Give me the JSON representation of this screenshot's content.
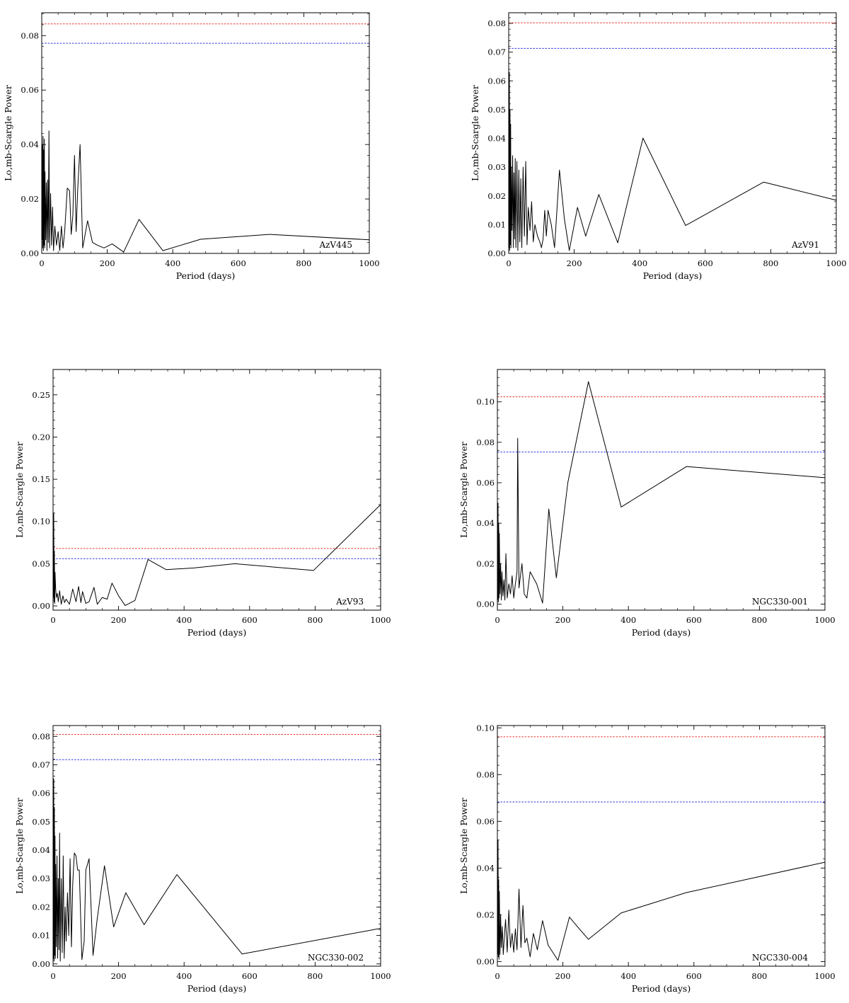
{
  "colors": {
    "curve": "#000000",
    "threshold_high": "#e8342e",
    "threshold_low": "#2d34e0",
    "axes": "#000000"
  },
  "chart_data": [
    {
      "type": "line",
      "label": "AzV445",
      "xlabel": "Period (days)",
      "ylabel": "Lo,mb-Scargle Power",
      "xlim": [
        0,
        1000
      ],
      "ylim": [
        0,
        0.0884
      ],
      "xticks": [
        0,
        200,
        400,
        600,
        800,
        1000
      ],
      "xtick_labels": [
        "0",
        "200",
        "400",
        "600",
        "800",
        "1000"
      ],
      "yticks": [
        0,
        0.02,
        0.04,
        0.06,
        0.08
      ],
      "ytick_labels": [
        "0.00",
        "0.02",
        "0.04",
        "0.06",
        "0.08"
      ],
      "thresholds": [
        0.0843,
        0.0772
      ],
      "x": [
        1,
        2,
        3,
        4,
        5,
        6,
        7,
        8,
        9,
        10,
        12,
        14,
        16,
        18,
        20,
        22,
        24,
        27,
        30,
        33,
        36,
        40,
        45,
        50,
        55,
        60,
        65,
        70,
        78,
        85,
        90,
        95,
        100,
        105,
        110,
        117,
        125,
        140,
        155,
        170,
        190,
        215,
        250,
        297,
        370,
        485,
        695,
        1000
      ],
      "values": [
        0.005,
        0.04,
        0.002,
        0.043,
        0.001,
        0.038,
        0.003,
        0.042,
        0.002,
        0.03,
        0.005,
        0.026,
        0.001,
        0.027,
        0.004,
        0.045,
        0.002,
        0.022,
        0.003,
        0.017,
        0.001,
        0.01,
        0.003,
        0.008,
        0.001,
        0.01,
        0.002,
        0.008,
        0.024,
        0.023,
        0.007,
        0.014,
        0.036,
        0.008,
        0.024,
        0.04,
        0.002,
        0.012,
        0.004,
        0.003,
        0.002,
        0.0035,
        0.0005,
        0.0125,
        0.001,
        0.0052,
        0.007,
        0.005
      ]
    },
    {
      "type": "line",
      "label": "AzV91",
      "xlabel": "Period (days)",
      "ylabel": "Lo,mb-Scargle Power",
      "xlim": [
        0,
        1000
      ],
      "ylim": [
        0,
        0.0837
      ],
      "xticks": [
        0,
        200,
        400,
        600,
        800,
        1000
      ],
      "xtick_labels": [
        "0",
        "200",
        "400",
        "600",
        "800",
        "1000"
      ],
      "yticks": [
        0,
        0.01,
        0.02,
        0.03,
        0.04,
        0.05,
        0.06,
        0.07,
        0.08
      ],
      "ytick_labels": [
        "0.00",
        "0.01",
        "0.02",
        "0.03",
        "0.04",
        "0.05",
        "0.06",
        "0.07",
        "0.08"
      ],
      "thresholds": [
        0.0802,
        0.0713
      ],
      "x": [
        1,
        2,
        3,
        4,
        5,
        6,
        7,
        8,
        10,
        12,
        14,
        16,
        18,
        20,
        22,
        25,
        28,
        31,
        34,
        37,
        40,
        44,
        48,
        52,
        56,
        60,
        65,
        70,
        75,
        80,
        88,
        95,
        100,
        105,
        110,
        115,
        120,
        130,
        140,
        155,
        170,
        185,
        210,
        235,
        275,
        333,
        410,
        540,
        778,
        1000
      ],
      "values": [
        0.002,
        0.063,
        0.001,
        0.05,
        0.003,
        0.045,
        0.002,
        0.03,
        0.008,
        0.034,
        0.002,
        0.028,
        0.005,
        0.033,
        0.002,
        0.032,
        0.001,
        0.029,
        0.004,
        0.026,
        0.002,
        0.03,
        0.006,
        0.032,
        0.003,
        0.016,
        0.008,
        0.018,
        0.004,
        0.01,
        0.006,
        0.004,
        0.002,
        0.005,
        0.015,
        0.006,
        0.015,
        0.01,
        0.002,
        0.029,
        0.012,
        0.001,
        0.016,
        0.006,
        0.0205,
        0.0037,
        0.0401,
        0.0097,
        0.0248,
        0.0185
      ]
    },
    {
      "type": "line",
      "label": "AzV93",
      "xlabel": "Period (days)",
      "ylabel": "Lo,mb-Scargle Power",
      "xlim": [
        0,
        1000
      ],
      "ylim": [
        -0.005,
        0.28
      ],
      "xticks": [
        0,
        200,
        400,
        600,
        800,
        1000
      ],
      "xtick_labels": [
        "0",
        "200",
        "400",
        "600",
        "800",
        "1000"
      ],
      "yticks": [
        0,
        0.05,
        0.1,
        0.15,
        0.2,
        0.25
      ],
      "ytick_labels": [
        "0.00",
        "0.05",
        "0.10",
        "0.15",
        "0.20",
        "0.25"
      ],
      "thresholds": [
        0.068,
        0.056
      ],
      "x": [
        1,
        2,
        3,
        4,
        5,
        6,
        8,
        10,
        13,
        16,
        20,
        25,
        30,
        35,
        40,
        50,
        60,
        70,
        78,
        85,
        90,
        100,
        110,
        125,
        135,
        150,
        165,
        180,
        200,
        220,
        250,
        290,
        345,
        430,
        555,
        795,
        1000
      ],
      "values": [
        0.01,
        0.11,
        0.005,
        0.065,
        0.003,
        0.04,
        0.02,
        0.01,
        0.015,
        0.005,
        0.018,
        0.002,
        0.012,
        0.004,
        0.008,
        0.002,
        0.02,
        0.005,
        0.023,
        0.004,
        0.017,
        0.003,
        0.005,
        0.022,
        0.002,
        0.01,
        0.008,
        0.027,
        0.012,
        0.0005,
        0.0065,
        0.055,
        0.043,
        0.045,
        0.05,
        0.042,
        0.12
      ]
    },
    {
      "type": "line",
      "label": "NGC330-001",
      "xlabel": "Period (days)",
      "ylabel": "Lo,mb-Scargle Power",
      "xlim": [
        0,
        1000
      ],
      "ylim": [
        -0.003,
        0.116
      ],
      "xticks": [
        0,
        200,
        400,
        600,
        800,
        1000
      ],
      "xtick_labels": [
        "0",
        "200",
        "400",
        "600",
        "800",
        "1000"
      ],
      "yticks": [
        0,
        0.02,
        0.04,
        0.06,
        0.08,
        0.1
      ],
      "ytick_labels": [
        "0.00",
        "0.02",
        "0.04",
        "0.06",
        "0.08",
        "0.10"
      ],
      "thresholds": [
        0.1025,
        0.0752
      ],
      "x": [
        1,
        2,
        3,
        4,
        5,
        6,
        8,
        10,
        12,
        14,
        17,
        20,
        23,
        26,
        30,
        35,
        40,
        45,
        50,
        55,
        60,
        62,
        66,
        75,
        82,
        90,
        100,
        120,
        138,
        157,
        180,
        215,
        278,
        378,
        577,
        1000
      ],
      "values": [
        0.002,
        0.05,
        0.001,
        0.04,
        0.003,
        0.035,
        0.005,
        0.02,
        0.002,
        0.016,
        0.004,
        0.012,
        0.002,
        0.025,
        0.003,
        0.01,
        0.005,
        0.014,
        0.003,
        0.01,
        0.016,
        0.082,
        0.008,
        0.02,
        0.005,
        0.003,
        0.016,
        0.01,
        0.0005,
        0.047,
        0.013,
        0.06,
        0.11,
        0.048,
        0.068,
        0.0625
      ]
    },
    {
      "type": "line",
      "label": "NGC330-002",
      "xlabel": "Period (days)",
      "ylabel": "Lo,mb-Scargle Power",
      "xlim": [
        0,
        1000
      ],
      "ylim": [
        -0.0008,
        0.0838
      ],
      "xticks": [
        0,
        200,
        400,
        600,
        800,
        1000
      ],
      "xtick_labels": [
        "0",
        "200",
        "400",
        "600",
        "800",
        "1000"
      ],
      "yticks": [
        0,
        0.01,
        0.02,
        0.03,
        0.04,
        0.05,
        0.06,
        0.07,
        0.08
      ],
      "ytick_labels": [
        "0.00",
        "0.01",
        "0.02",
        "0.03",
        "0.04",
        "0.05",
        "0.06",
        "0.07",
        "0.08"
      ],
      "thresholds": [
        0.0807,
        0.0718
      ],
      "x": [
        1,
        2,
        3,
        4,
        5,
        6,
        7,
        8,
        10,
        12,
        14,
        16,
        18,
        20,
        22,
        25,
        28,
        31,
        34,
        37,
        40,
        44,
        48,
        52,
        56,
        60,
        65,
        70,
        75,
        80,
        88,
        95,
        100,
        105,
        110,
        122,
        135,
        157,
        185,
        222,
        278,
        378,
        577,
        1000
      ],
      "values": [
        0.002,
        0.065,
        0.001,
        0.055,
        0.003,
        0.045,
        0.002,
        0.035,
        0.006,
        0.038,
        0.002,
        0.03,
        0.005,
        0.046,
        0.001,
        0.03,
        0.004,
        0.038,
        0.002,
        0.02,
        0.008,
        0.025,
        0.01,
        0.037,
        0.006,
        0.028,
        0.039,
        0.038,
        0.033,
        0.033,
        0.0015,
        0.008,
        0.033,
        0.035,
        0.037,
        0.003,
        0.016,
        0.0345,
        0.013,
        0.025,
        0.0138,
        0.0314,
        0.0035,
        0.0125
      ]
    },
    {
      "type": "line",
      "label": "NGC330-004",
      "xlabel": "Period (days)",
      "ylabel": "Lo,mb-Scargle Power",
      "xlim": [
        0,
        1000
      ],
      "ylim": [
        -0.002,
        0.101
      ],
      "xticks": [
        0,
        200,
        400,
        600,
        800,
        1000
      ],
      "xtick_labels": [
        "0",
        "200",
        "400",
        "600",
        "800",
        "1000"
      ],
      "yticks": [
        0,
        0.02,
        0.04,
        0.06,
        0.08,
        0.1
      ],
      "ytick_labels": [
        "0.00",
        "0.02",
        "0.04",
        "0.06",
        "0.08",
        "0.10"
      ],
      "thresholds": [
        0.0962,
        0.0683
      ],
      "x": [
        1,
        2,
        3,
        4,
        5,
        6,
        8,
        10,
        12,
        15,
        18,
        21,
        25,
        30,
        35,
        40,
        45,
        50,
        55,
        60,
        66,
        72,
        78,
        84,
        90,
        100,
        110,
        122,
        138,
        155,
        185,
        220,
        250,
        278,
        378,
        577,
        1000
      ],
      "values": [
        0.003,
        0.052,
        0.002,
        0.035,
        0.001,
        0.03,
        0.003,
        0.02,
        0.006,
        0.015,
        0.003,
        0.01,
        0.018,
        0.004,
        0.022,
        0.006,
        0.012,
        0.004,
        0.014,
        0.005,
        0.031,
        0.006,
        0.024,
        0.008,
        0.01,
        0.002,
        0.012,
        0.005,
        0.0175,
        0.007,
        0.0005,
        0.019,
        0.014,
        0.0095,
        0.0208,
        0.0295,
        0.0425
      ]
    }
  ]
}
